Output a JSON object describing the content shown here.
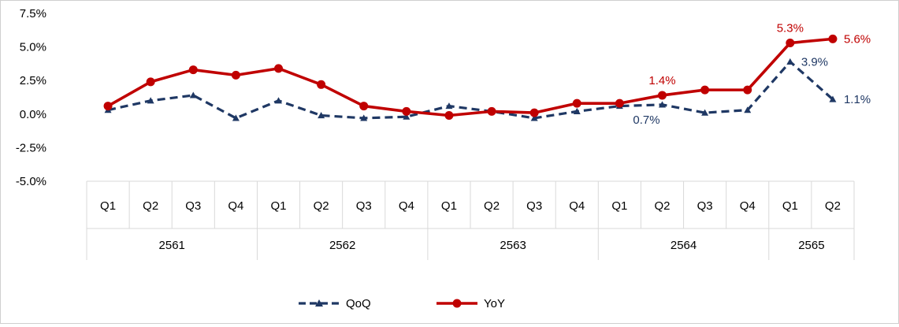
{
  "colors": {
    "qoq": "#1F3864",
    "yoy": "#C00000",
    "axis": "#D9D9D9"
  },
  "chart_data": {
    "type": "line",
    "title": "",
    "xlabel": "",
    "ylabel": "",
    "ylim": [
      -5.0,
      7.5
    ],
    "yticks": [
      "7.5%",
      "5.0%",
      "2.5%",
      "0.0%",
      "-2.5%",
      "-5.0%"
    ],
    "ytick_values": [
      7.5,
      5.0,
      2.5,
      0.0,
      -2.5,
      -5.0
    ],
    "grid": false,
    "legend": "bottom-center",
    "categories": [
      "Q1",
      "Q2",
      "Q3",
      "Q4",
      "Q1",
      "Q2",
      "Q3",
      "Q4",
      "Q1",
      "Q2",
      "Q3",
      "Q4",
      "Q1",
      "Q2",
      "Q3",
      "Q4",
      "Q1",
      "Q2"
    ],
    "years": [
      {
        "label": "2561",
        "count": 4
      },
      {
        "label": "2562",
        "count": 4
      },
      {
        "label": "2563",
        "count": 4
      },
      {
        "label": "2564",
        "count": 4
      },
      {
        "label": "2565",
        "count": 2
      }
    ],
    "series": [
      {
        "name": "QoQ",
        "style": "dashed-triangle",
        "values": [
          0.3,
          1.0,
          1.4,
          -0.3,
          1.0,
          -0.1,
          -0.3,
          -0.2,
          0.6,
          0.2,
          -0.3,
          0.2,
          0.6,
          0.7,
          0.1,
          0.3,
          3.9,
          1.1
        ],
        "labels": [
          {
            "index": 13,
            "text": "0.7%",
            "position": "below"
          },
          {
            "index": 16,
            "text": "3.9%",
            "position": "right"
          },
          {
            "index": 17,
            "text": "1.1%",
            "position": "right"
          }
        ]
      },
      {
        "name": "YoY",
        "style": "solid-circle",
        "values": [
          0.6,
          2.4,
          3.3,
          2.9,
          3.4,
          2.2,
          0.6,
          0.2,
          -0.1,
          0.2,
          0.1,
          0.8,
          0.8,
          1.4,
          1.8,
          1.8,
          5.3,
          5.6
        ],
        "labels": [
          {
            "index": 13,
            "text": "1.4%",
            "position": "above"
          },
          {
            "index": 16,
            "text": "5.3%",
            "position": "above"
          },
          {
            "index": 17,
            "text": "5.6%",
            "position": "right"
          }
        ]
      }
    ]
  }
}
